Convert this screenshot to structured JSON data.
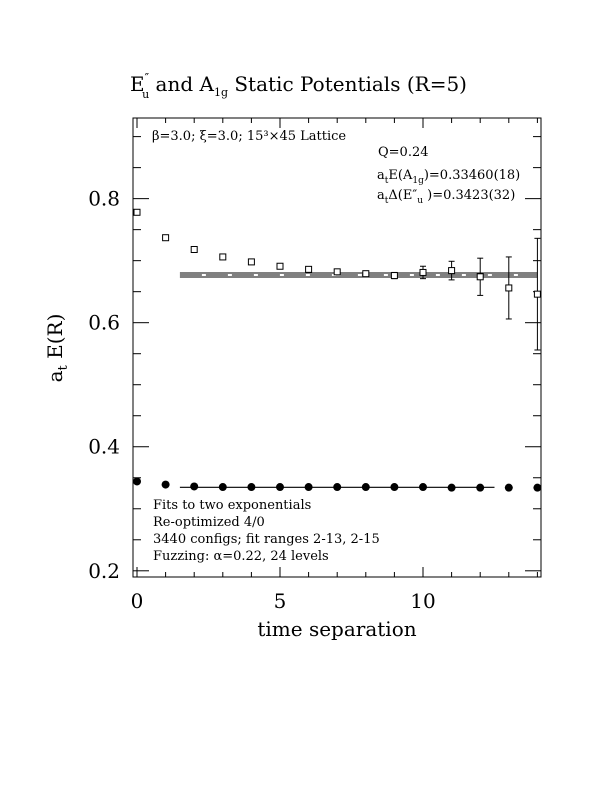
{
  "chart_data": {
    "type": "scatter",
    "title": "E″u and A1g Static Potentials (R=5)",
    "title_parts": {
      "main": "E",
      "sup": "″",
      "sub1": "u",
      "mid": " and A",
      "sub2": "1g",
      "tail": " Static Potentials (R=5)"
    },
    "xlabel": "time separation",
    "ylabel_main": "a",
    "ylabel_sub": "t",
    "ylabel_tail": " E(R)",
    "xlim": [
      0,
      14
    ],
    "ylim": [
      0.19,
      0.93
    ],
    "x_ticks": [
      0,
      5,
      10
    ],
    "x_tick_labels": [
      "0",
      "5",
      "10"
    ],
    "y_ticks": [
      0.2,
      0.4,
      0.6,
      0.8
    ],
    "y_tick_labels": [
      "0.2",
      "0.4",
      "0.6",
      "0.8"
    ],
    "annotations_top": {
      "lattice": "β=3.0; ξ=3.0; 15³×45 Lattice",
      "q": "Q=0.24",
      "energy_a1g": "a_tE(A_1g)=0.33460(18)",
      "delta_eu": "a_tΔ(E″_u)=0.3423(32)"
    },
    "annotations_bottom": [
      "Fits to two exponentials",
      "Re-optimized 4/0",
      "3440 configs; fit ranges 2-13, 2-15",
      "Fuzzing: α=0.22, 24 levels"
    ],
    "series": [
      {
        "marker": "open-square",
        "x": [
          0,
          1,
          2,
          3,
          4,
          5,
          6,
          7,
          8,
          9,
          10,
          11,
          12,
          13,
          14
        ],
        "y": [
          0.778,
          0.737,
          0.718,
          0.706,
          0.698,
          0.691,
          0.686,
          0.682,
          0.679,
          0.676,
          0.681,
          0.684,
          0.674,
          0.656,
          0.646
        ],
        "err": [
          0,
          0,
          0,
          0,
          0,
          0,
          0,
          0.003,
          0.004,
          0.005,
          0.01,
          0.015,
          0.03,
          0.05,
          0.09
        ]
      },
      {
        "marker": "filled-circle",
        "x": [
          0,
          1,
          2,
          3,
          4,
          5,
          6,
          7,
          8,
          9,
          10,
          11,
          12,
          13,
          14
        ],
        "y": [
          0.344,
          0.339,
          0.336,
          0.335,
          0.335,
          0.335,
          0.335,
          0.335,
          0.335,
          0.335,
          0.335,
          0.334,
          0.334,
          0.334,
          0.334
        ],
        "err": [
          0,
          0,
          0,
          0,
          0,
          0,
          0,
          0,
          0,
          0,
          0,
          0,
          0,
          0,
          0
        ]
      }
    ],
    "fit_lines": [
      {
        "x_range": [
          1.5,
          14
        ],
        "y_center": 0.6769,
        "half_width": 0.0032
      },
      {
        "x_range": [
          1.5,
          12.5
        ],
        "y_center": 0.3346,
        "half_width": 0.0006
      }
    ]
  }
}
